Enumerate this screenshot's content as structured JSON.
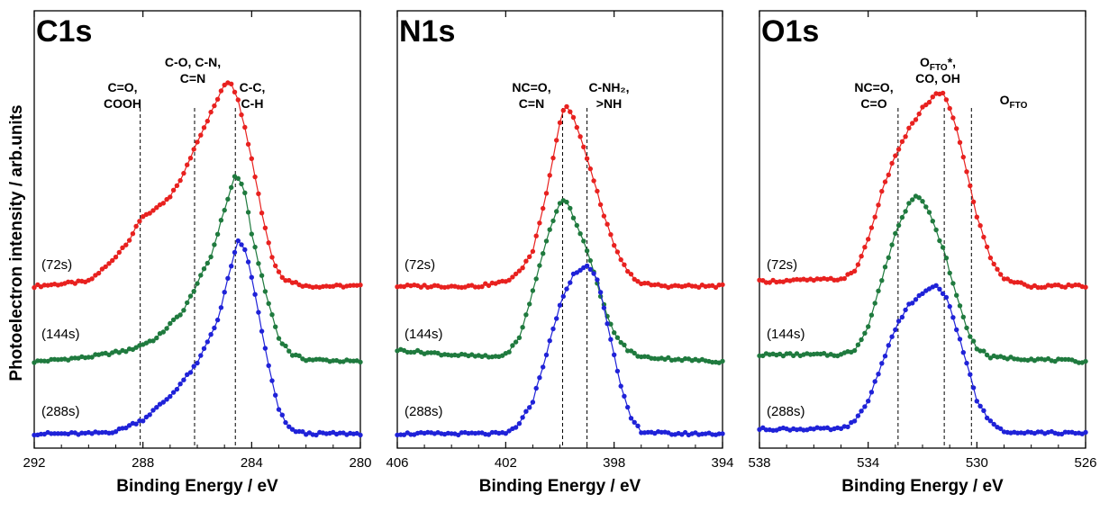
{
  "ylabel": "Photoelectron intensity / arb.units",
  "colors": {
    "72s": "#e8211f",
    "144s": "#1f7a3e",
    "288s": "#1f22d8"
  },
  "chart_data": [
    {
      "type": "line",
      "title": "C1s",
      "xlabel": "Binding Energy / eV",
      "xlim": [
        292,
        280
      ],
      "xticks": [
        292,
        288,
        284,
        280
      ],
      "grid": false,
      "reference_lines": [
        288.1,
        286.1,
        284.6
      ],
      "annotations": [
        {
          "lines": [
            "C=O,",
            "COOH"
          ]
        },
        {
          "lines": [
            "C-O, C-N,",
            "C=N"
          ]
        },
        {
          "lines": [
            "C-C,",
            "C-H"
          ]
        }
      ],
      "series": [
        {
          "name": "(72s)",
          "color": "#e8211f",
          "points": [
            [
              292,
              0.0
            ],
            [
              290,
              0.02
            ],
            [
              289.2,
              0.1
            ],
            [
              288.5,
              0.2
            ],
            [
              288,
              0.3
            ],
            [
              287.5,
              0.33
            ],
            [
              287,
              0.38
            ],
            [
              286.5,
              0.48
            ],
            [
              286,
              0.62
            ],
            [
              285.5,
              0.74
            ],
            [
              285,
              0.86
            ],
            [
              284.8,
              0.88
            ],
            [
              284.5,
              0.8
            ],
            [
              284,
              0.55
            ],
            [
              283.6,
              0.3
            ],
            [
              283.2,
              0.1
            ],
            [
              282.8,
              0.03
            ],
            [
              282,
              0.0
            ],
            [
              280,
              0.0
            ]
          ]
        },
        {
          "name": "(144s)",
          "color": "#1f7a3e",
          "points": [
            [
              292,
              0.0
            ],
            [
              290,
              0.02
            ],
            [
              288.5,
              0.05
            ],
            [
              287.5,
              0.1
            ],
            [
              286.5,
              0.22
            ],
            [
              285.5,
              0.45
            ],
            [
              285,
              0.65
            ],
            [
              284.6,
              0.8
            ],
            [
              284.3,
              0.75
            ],
            [
              284,
              0.55
            ],
            [
              283.5,
              0.3
            ],
            [
              283,
              0.1
            ],
            [
              282.5,
              0.03
            ],
            [
              282,
              0.01
            ],
            [
              280,
              0.0
            ]
          ]
        },
        {
          "name": "(288s)",
          "color": "#1f22d8",
          "points": [
            [
              292,
              0.0
            ],
            [
              290,
              0.0
            ],
            [
              289,
              0.01
            ],
            [
              288,
              0.06
            ],
            [
              287,
              0.16
            ],
            [
              286,
              0.3
            ],
            [
              285.2,
              0.5
            ],
            [
              284.8,
              0.7
            ],
            [
              284.5,
              0.82
            ],
            [
              284.2,
              0.78
            ],
            [
              283.8,
              0.55
            ],
            [
              283.4,
              0.3
            ],
            [
              283,
              0.1
            ],
            [
              282.6,
              0.02
            ],
            [
              282,
              0.0
            ],
            [
              280,
              0.0
            ]
          ]
        }
      ]
    },
    {
      "type": "line",
      "title": "N1s",
      "xlabel": "Binding Energy / eV",
      "xlim": [
        406,
        394
      ],
      "xticks": [
        406,
        402,
        398,
        394
      ],
      "grid": false,
      "reference_lines": [
        399.9,
        399.0
      ],
      "annotations": [
        {
          "lines": [
            "NC=O,",
            "C=N"
          ]
        },
        {
          "lines": [
            "C-NH₂,",
            ">NH"
          ]
        }
      ],
      "series": [
        {
          "name": "(72s)",
          "color": "#e8211f",
          "points": [
            [
              406,
              0.0
            ],
            [
              403,
              0.0
            ],
            [
              402,
              0.02
            ],
            [
              401.5,
              0.06
            ],
            [
              401,
              0.15
            ],
            [
              400.5,
              0.4
            ],
            [
              400,
              0.7
            ],
            [
              399.8,
              0.78
            ],
            [
              399.5,
              0.72
            ],
            [
              399,
              0.55
            ],
            [
              398.5,
              0.35
            ],
            [
              398,
              0.17
            ],
            [
              397.5,
              0.06
            ],
            [
              397,
              0.01
            ],
            [
              396,
              0.0
            ],
            [
              394,
              0.0
            ]
          ]
        },
        {
          "name": "(144s)",
          "color": "#1f7a3e",
          "points": [
            [
              406,
              0.05
            ],
            [
              404,
              0.03
            ],
            [
              402.5,
              0.02
            ],
            [
              402,
              0.03
            ],
            [
              401.5,
              0.1
            ],
            [
              401,
              0.3
            ],
            [
              400.5,
              0.52
            ],
            [
              400,
              0.68
            ],
            [
              399.8,
              0.7
            ],
            [
              399.5,
              0.62
            ],
            [
              399,
              0.48
            ],
            [
              398.5,
              0.28
            ],
            [
              398,
              0.12
            ],
            [
              397.5,
              0.05
            ],
            [
              397,
              0.02
            ],
            [
              394,
              0.0
            ]
          ]
        },
        {
          "name": "(288s)",
          "color": "#1f22d8",
          "points": [
            [
              406,
              0.0
            ],
            [
              403,
              0.0
            ],
            [
              402,
              0.0
            ],
            [
              401.5,
              0.04
            ],
            [
              401,
              0.14
            ],
            [
              400.5,
              0.34
            ],
            [
              400,
              0.55
            ],
            [
              399.5,
              0.68
            ],
            [
              399,
              0.72
            ],
            [
              398.6,
              0.66
            ],
            [
              398.2,
              0.45
            ],
            [
              397.8,
              0.22
            ],
            [
              397.4,
              0.07
            ],
            [
              397,
              0.01
            ],
            [
              396,
              0.0
            ],
            [
              394,
              0.0
            ]
          ]
        }
      ]
    },
    {
      "type": "line",
      "title": "O1s",
      "xlabel": "Binding Energy / eV",
      "xlim": [
        538,
        526
      ],
      "xticks": [
        538,
        534,
        530,
        526
      ],
      "grid": false,
      "reference_lines": [
        532.9,
        531.2,
        530.2
      ],
      "annotations": [
        {
          "lines": [
            "NC=O,",
            "C=O"
          ]
        },
        {
          "lines": [
            "O_FTO*,",
            "CO, OH"
          ]
        },
        {
          "lines": [
            "O_FTO"
          ]
        }
      ],
      "series": [
        {
          "name": "(72s)",
          "color": "#e8211f",
          "points": [
            [
              538,
              0.02
            ],
            [
              535,
              0.03
            ],
            [
              534.5,
              0.06
            ],
            [
              534,
              0.2
            ],
            [
              533.5,
              0.4
            ],
            [
              533,
              0.56
            ],
            [
              532.5,
              0.67
            ],
            [
              532,
              0.76
            ],
            [
              531.5,
              0.82
            ],
            [
              531.2,
              0.82
            ],
            [
              530.8,
              0.7
            ],
            [
              530.3,
              0.45
            ],
            [
              530,
              0.3
            ],
            [
              529.5,
              0.12
            ],
            [
              529,
              0.03
            ],
            [
              528,
              0.0
            ],
            [
              526,
              0.0
            ]
          ]
        },
        {
          "name": "(144s)",
          "color": "#1f7a3e",
          "points": [
            [
              538,
              0.03
            ],
            [
              535,
              0.03
            ],
            [
              534.5,
              0.05
            ],
            [
              534,
              0.15
            ],
            [
              533.5,
              0.35
            ],
            [
              533,
              0.55
            ],
            [
              532.5,
              0.68
            ],
            [
              532.2,
              0.72
            ],
            [
              531.8,
              0.65
            ],
            [
              531.2,
              0.47
            ],
            [
              530.8,
              0.3
            ],
            [
              530.3,
              0.12
            ],
            [
              530,
              0.06
            ],
            [
              529.5,
              0.02
            ],
            [
              526,
              0.0
            ]
          ]
        },
        {
          "name": "(288s)",
          "color": "#1f22d8",
          "points": [
            [
              538,
              0.02
            ],
            [
              535,
              0.02
            ],
            [
              534.5,
              0.05
            ],
            [
              534,
              0.14
            ],
            [
              533.5,
              0.3
            ],
            [
              533,
              0.45
            ],
            [
              532.5,
              0.55
            ],
            [
              532,
              0.6
            ],
            [
              531.5,
              0.63
            ],
            [
              531.1,
              0.58
            ],
            [
              530.8,
              0.47
            ],
            [
              530.3,
              0.27
            ],
            [
              530,
              0.14
            ],
            [
              529.5,
              0.05
            ],
            [
              529,
              0.01
            ],
            [
              526,
              0.0
            ]
          ]
        }
      ]
    }
  ]
}
